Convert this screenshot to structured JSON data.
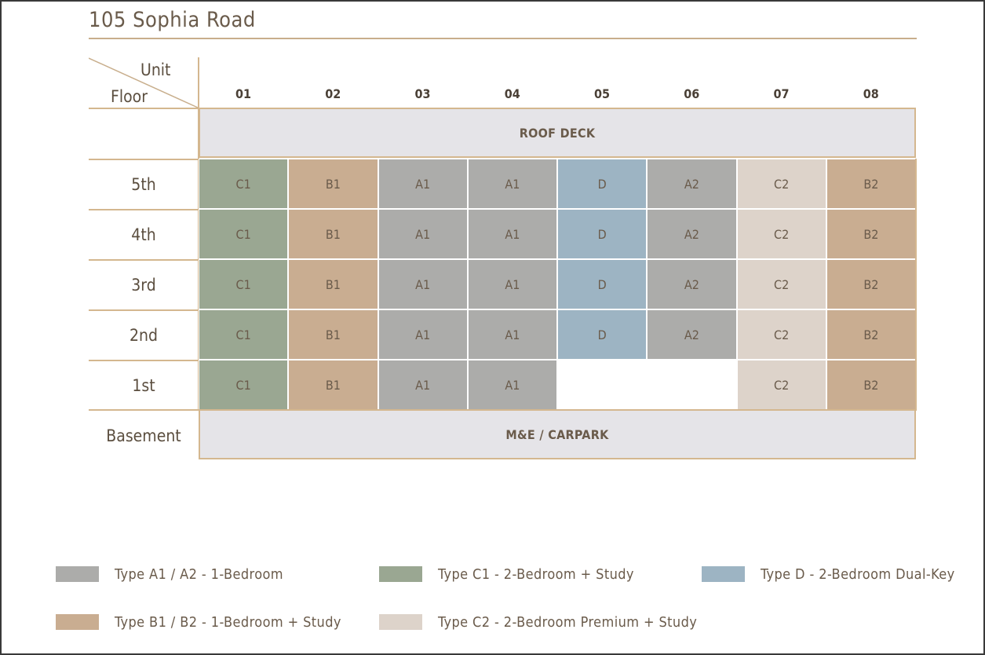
{
  "title": "105 Sophia Road",
  "corner": {
    "unit_label": "Unit",
    "floor_label": "Floor"
  },
  "units": [
    "01",
    "02",
    "03",
    "04",
    "05",
    "06",
    "07",
    "08"
  ],
  "roof_label": "ROOF DECK",
  "basement": {
    "floor": "Basement",
    "label": "M&E / CARPARK"
  },
  "colors": {
    "A": "#acacaa",
    "B": "#c9ad91",
    "C1": "#9aa792",
    "C2": "#ddd3ca",
    "D": "#9db4c3",
    "accent_line": "#d4b78f",
    "deck_fill": "#e5e4e8"
  },
  "floors": [
    {
      "name": "5th",
      "units": [
        "C1",
        "B1",
        "A1",
        "A1",
        "D",
        "A2",
        "C2",
        "B2"
      ]
    },
    {
      "name": "4th",
      "units": [
        "C1",
        "B1",
        "A1",
        "A1",
        "D",
        "A2",
        "C2",
        "B2"
      ]
    },
    {
      "name": "3rd",
      "units": [
        "C1",
        "B1",
        "A1",
        "A1",
        "D",
        "A2",
        "C2",
        "B2"
      ]
    },
    {
      "name": "2nd",
      "units": [
        "C1",
        "B1",
        "A1",
        "A1",
        "D",
        "A2",
        "C2",
        "B2"
      ]
    },
    {
      "name": "1st",
      "units": [
        "C1",
        "B1",
        "A1",
        "A1",
        "",
        "",
        "C2",
        "B2"
      ]
    }
  ],
  "legend": [
    {
      "label": "Type A1 / A2 - 1-Bedroom",
      "color": "#acacaa"
    },
    {
      "label": "Type C1 - 2-Bedroom + Study",
      "color": "#9aa792"
    },
    {
      "label": "Type D - 2-Bedroom Dual-Key",
      "color": "#9db4c3"
    },
    {
      "label": "Type B1 / B2 - 1-Bedroom + Study",
      "color": "#c9ad91"
    },
    {
      "label": "Type C2 - 2-Bedroom Premium + Study",
      "color": "#ddd3ca"
    }
  ]
}
